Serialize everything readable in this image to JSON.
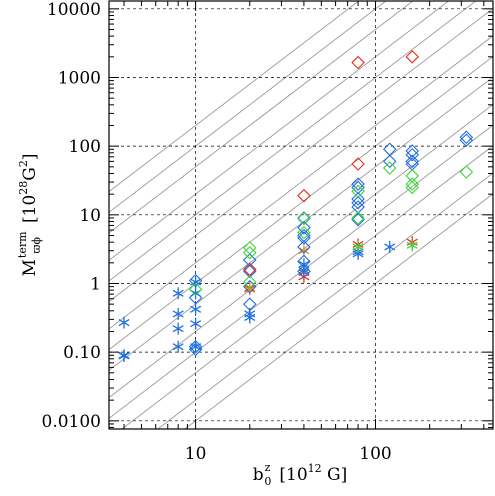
{
  "chart_data": {
    "type": "scatter",
    "title": "",
    "x_scale": "log",
    "y_scale": "log",
    "xlim": [
      3.3,
      450
    ],
    "ylim": [
      0.0076,
      13000
    ],
    "xlabel": {
      "base": "b",
      "sub": "0",
      "sup": "z",
      "unit_open": "[10",
      "unit_exp": "12",
      "unit_close": " G]"
    },
    "ylabel": {
      "base": "M",
      "sub": "ϖϕ",
      "sup": "term",
      "unit_open": "[10",
      "unit_exp": "28",
      "unit_close": "G",
      "unit_exp2": "2",
      "unit_end": "]"
    },
    "x_ticks": [
      {
        "value": 10,
        "label": "10"
      },
      {
        "value": 100,
        "label": "100"
      }
    ],
    "y_ticks": [
      {
        "value": 10000,
        "label": "10000"
      },
      {
        "value": 1000,
        "label": "1000"
      },
      {
        "value": 100,
        "label": "100"
      },
      {
        "value": 10,
        "label": "10"
      },
      {
        "value": 1,
        "label": "1"
      },
      {
        "value": 0.1,
        "label": "0.10"
      },
      {
        "value": 0.01,
        "label": "0.0100"
      }
    ],
    "grid": true,
    "diagonal_lines": {
      "slope": 2,
      "y_at_x1": [
        0.0001,
        0.0002,
        0.0005,
        0.001,
        0.002,
        0.005,
        0.01,
        0.02,
        0.05,
        0.1,
        0.2,
        0.5,
        1,
        2
      ]
    },
    "colors": {
      "blue": "#1f6fe0",
      "red": "#e8301e",
      "green": "#3dd63a",
      "orange": "#f08a1c",
      "line": "#9a9a9a",
      "grid": "#000000"
    },
    "series": [
      {
        "marker": "asterisk",
        "color": "blue",
        "points": [
          [
            4,
            0.27
          ],
          [
            4,
            0.09
          ],
          [
            4,
            0.088
          ],
          [
            8,
            0.72
          ],
          [
            8,
            0.36
          ],
          [
            8,
            0.22
          ],
          [
            8,
            0.12
          ],
          [
            10,
            1.05
          ],
          [
            10,
            0.72
          ],
          [
            10,
            0.42
          ],
          [
            10,
            0.26
          ],
          [
            10,
            0.12
          ],
          [
            20,
            0.36
          ],
          [
            20,
            0.32
          ],
          [
            40,
            1.9
          ],
          [
            40,
            1.55
          ],
          [
            40,
            1.45
          ],
          [
            80,
            2.9
          ],
          [
            80,
            2.7
          ],
          [
            120,
            3.4
          ]
        ]
      },
      {
        "marker": "asterisk",
        "color": "red",
        "points": [
          [
            20,
            0.85
          ],
          [
            40,
            1.25
          ],
          [
            80,
            3.7
          ],
          [
            160,
            4.0
          ]
        ]
      },
      {
        "marker": "asterisk",
        "color": "orange",
        "points": [
          [
            20,
            0.82
          ],
          [
            40,
            3.0
          ]
        ]
      },
      {
        "marker": "asterisk",
        "color": "green",
        "points": [
          [
            80,
            3.4
          ],
          [
            160,
            3.6
          ]
        ]
      },
      {
        "marker": "diamond",
        "color": "blue",
        "points": [
          [
            10,
            1.1
          ],
          [
            10,
            0.62
          ],
          [
            10,
            0.12
          ],
          [
            10,
            0.11
          ],
          [
            20,
            2.2
          ],
          [
            20,
            1.6
          ],
          [
            20,
            1.5
          ],
          [
            20,
            0.9
          ],
          [
            20,
            0.5
          ],
          [
            40,
            9.0
          ],
          [
            40,
            6.5
          ],
          [
            40,
            5.0
          ],
          [
            40,
            4.6
          ],
          [
            40,
            3.4
          ],
          [
            40,
            2.1
          ],
          [
            40,
            1.5
          ],
          [
            80,
            28
          ],
          [
            80,
            25
          ],
          [
            80,
            17
          ],
          [
            80,
            15
          ],
          [
            80,
            13
          ],
          [
            80,
            8.5
          ],
          [
            120,
            90
          ],
          [
            120,
            60
          ],
          [
            160,
            85
          ],
          [
            160,
            75
          ],
          [
            160,
            60
          ],
          [
            160,
            55
          ],
          [
            320,
            135
          ],
          [
            320,
            122
          ]
        ]
      },
      {
        "marker": "diamond",
        "color": "red",
        "points": [
          [
            20,
            1.6
          ],
          [
            40,
            19
          ],
          [
            80,
            1650
          ],
          [
            80,
            55
          ],
          [
            160,
            2000
          ]
        ]
      },
      {
        "marker": "diamond",
        "color": "green",
        "points": [
          [
            10,
            0.82
          ],
          [
            20,
            3.3
          ],
          [
            20,
            2.8
          ],
          [
            20,
            1.05
          ],
          [
            40,
            8.8
          ],
          [
            40,
            5.5
          ],
          [
            80,
            22
          ],
          [
            80,
            9.0
          ],
          [
            120,
            48
          ],
          [
            160,
            37
          ],
          [
            160,
            28
          ],
          [
            160,
            25
          ],
          [
            320,
            42
          ]
        ]
      }
    ]
  }
}
